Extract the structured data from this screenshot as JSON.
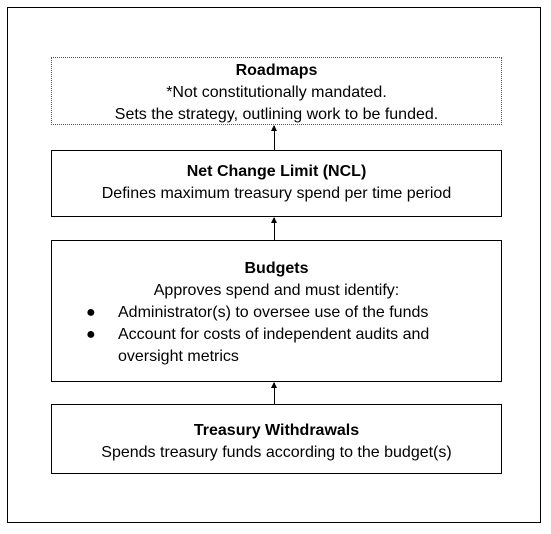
{
  "roadmaps": {
    "title": "Roadmaps",
    "lines": [
      "*Not constitutionally mandated.",
      "Sets the strategy, outlining work to be funded."
    ]
  },
  "ncl": {
    "title": "Net Change Limit (NCL)",
    "lines": [
      "Defines maximum treasury spend per time period"
    ]
  },
  "budgets": {
    "title": "Budgets",
    "intro": "Approves spend and must identify:",
    "bullet_symbol": "●",
    "bullets": [
      "Administrator(s) to oversee use of the funds",
      "Account for costs of independent audits and oversight metrics"
    ]
  },
  "withdrawals": {
    "title": "Treasury Withdrawals",
    "lines": [
      "Spends treasury funds according to the budget(s)"
    ]
  }
}
